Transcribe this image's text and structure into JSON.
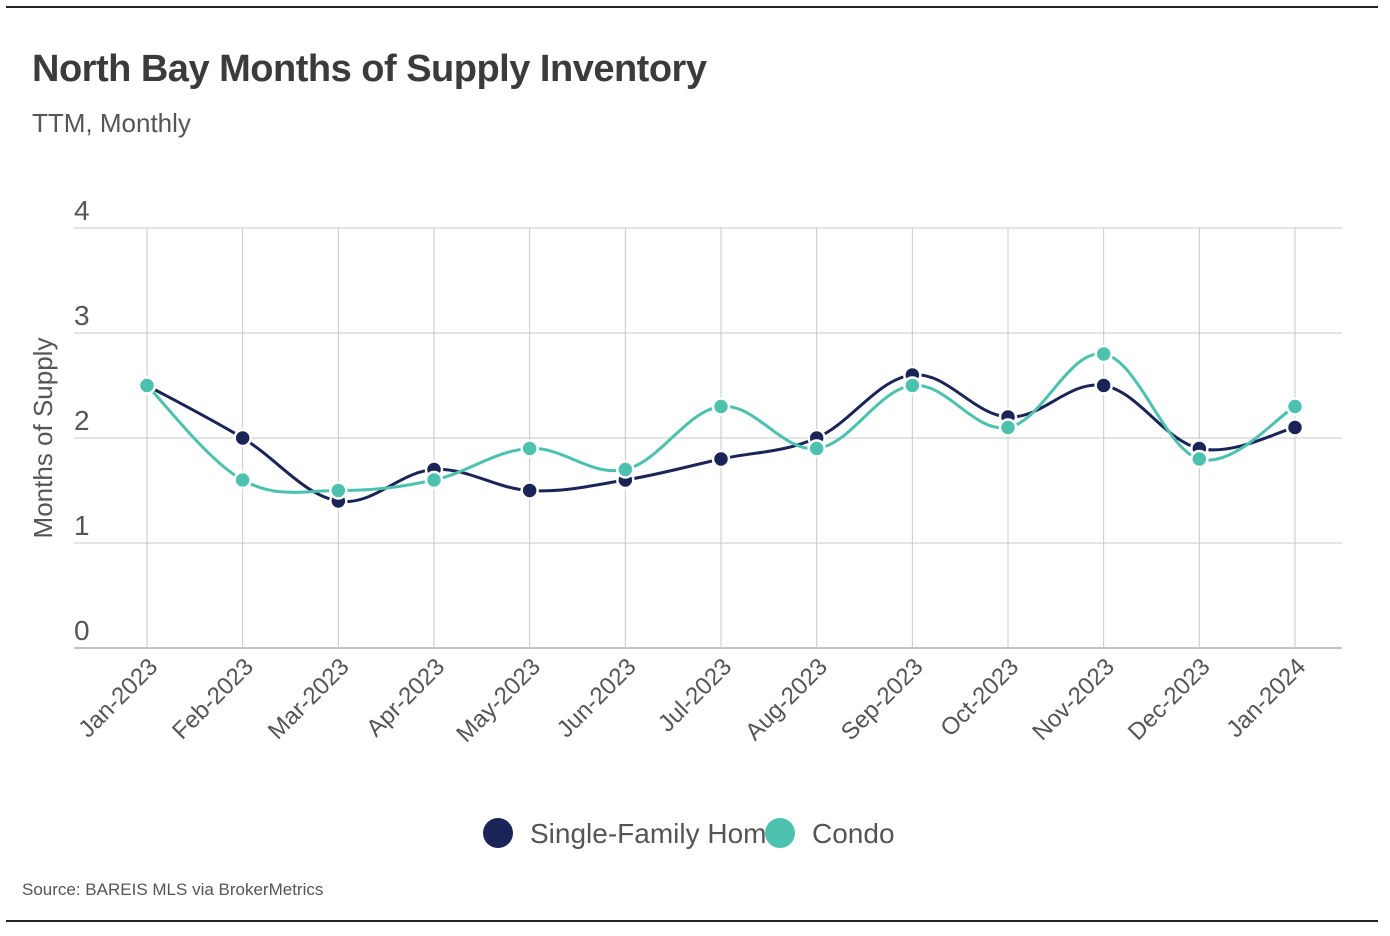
{
  "header": {
    "title": "North Bay Months of Supply Inventory",
    "subtitle": "TTM, Monthly"
  },
  "footer": {
    "source": "Source:  BAREIS MLS via BrokerMetrics"
  },
  "colors": {
    "single_family": "#1b2457",
    "condo": "#4cc2ae",
    "grid": "#c8c8c8",
    "text": "#555555"
  },
  "chart_data": {
    "type": "line",
    "title": "North Bay Months of Supply Inventory",
    "subtitle": "TTM, Monthly",
    "xlabel": "",
    "ylabel": "Months of Supply",
    "ylim": [
      0,
      4
    ],
    "yticks": [
      0,
      1,
      2,
      3,
      4
    ],
    "grid": true,
    "legend": "bottom-center",
    "categories": [
      "Jan-2023",
      "Feb-2023",
      "Mar-2023",
      "Apr-2023",
      "May-2023",
      "Jun-2023",
      "Jul-2023",
      "Aug-2023",
      "Sep-2023",
      "Oct-2023",
      "Nov-2023",
      "Dec-2023",
      "Jan-2024"
    ],
    "series": [
      {
        "name": "Single-Family Home",
        "color": "#1b2457",
        "values": [
          2.5,
          2.0,
          1.4,
          1.7,
          1.5,
          1.6,
          1.8,
          2.0,
          2.6,
          2.2,
          2.5,
          1.9,
          2.1
        ]
      },
      {
        "name": "Condo",
        "color": "#4cc2ae",
        "values": [
          2.5,
          1.6,
          1.5,
          1.6,
          1.9,
          1.7,
          2.3,
          1.9,
          2.5,
          2.1,
          2.8,
          1.8,
          2.3
        ]
      }
    ]
  }
}
